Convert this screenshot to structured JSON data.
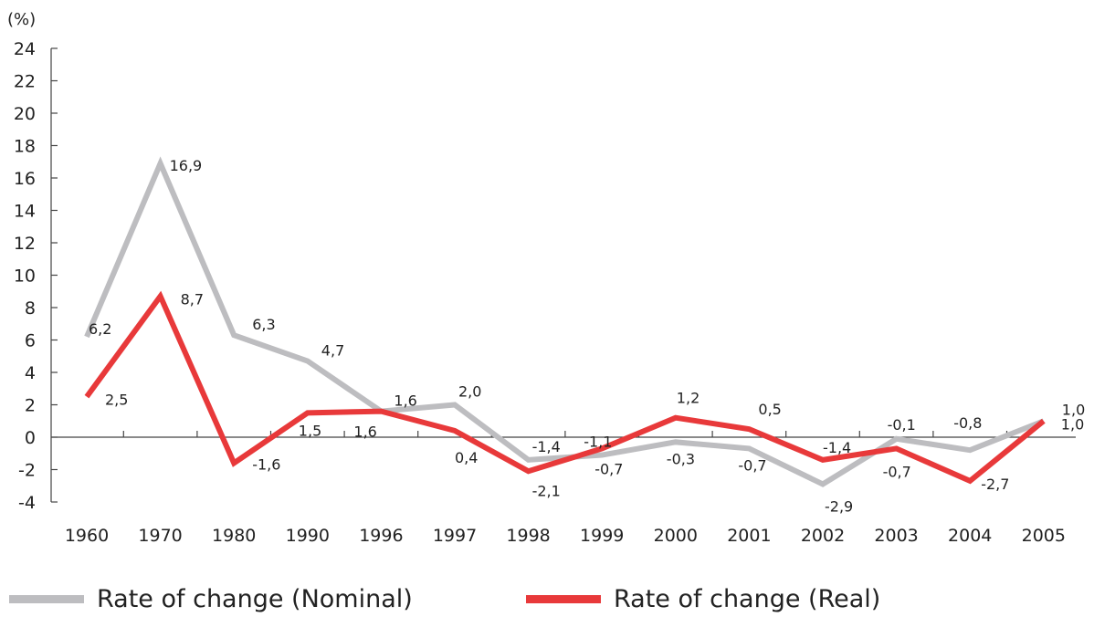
{
  "chart_data": {
    "type": "line",
    "unit_label": "(%)",
    "categories": [
      "1960",
      "1970",
      "1980",
      "1990",
      "1996",
      "1997",
      "1998",
      "1999",
      "2000",
      "2001",
      "2002",
      "2003",
      "2004",
      "2005"
    ],
    "ylim": [
      -4,
      24
    ],
    "yticks": [
      -4,
      -2,
      0,
      2,
      4,
      6,
      8,
      10,
      12,
      14,
      16,
      18,
      20,
      22,
      24
    ],
    "series": [
      {
        "name": "Rate of change (Nominal)",
        "color": "#bdbdc0",
        "values": [
          6.2,
          16.9,
          6.3,
          4.7,
          1.6,
          2.0,
          -1.4,
          -1.1,
          -0.3,
          -0.7,
          -2.9,
          -0.1,
          -0.8,
          1.0
        ],
        "labels": [
          "6,2",
          "16,9",
          "6,3",
          "4,7",
          "1,6",
          "2,0",
          "-1,4",
          "-1,1",
          "-0,3",
          "-0,7",
          "-2,9",
          "-0,1",
          "-0,8",
          "1,0"
        ]
      },
      {
        "name": "Rate of change (Real)",
        "color": "#e8393a",
        "values": [
          2.5,
          8.7,
          -1.6,
          1.5,
          1.6,
          0.4,
          -2.1,
          -0.7,
          1.2,
          0.5,
          -1.4,
          -0.7,
          -2.7,
          1.0
        ],
        "labels": [
          "2,5",
          "8,7",
          "-1,6",
          "1,5",
          "1,6",
          "0,4",
          "-2,1",
          "-0,7",
          "1,2",
          "0,5",
          "-1,4",
          "-0,7",
          "-2,7",
          "1,0"
        ]
      }
    ],
    "grid": false,
    "legend_position": "bottom"
  }
}
